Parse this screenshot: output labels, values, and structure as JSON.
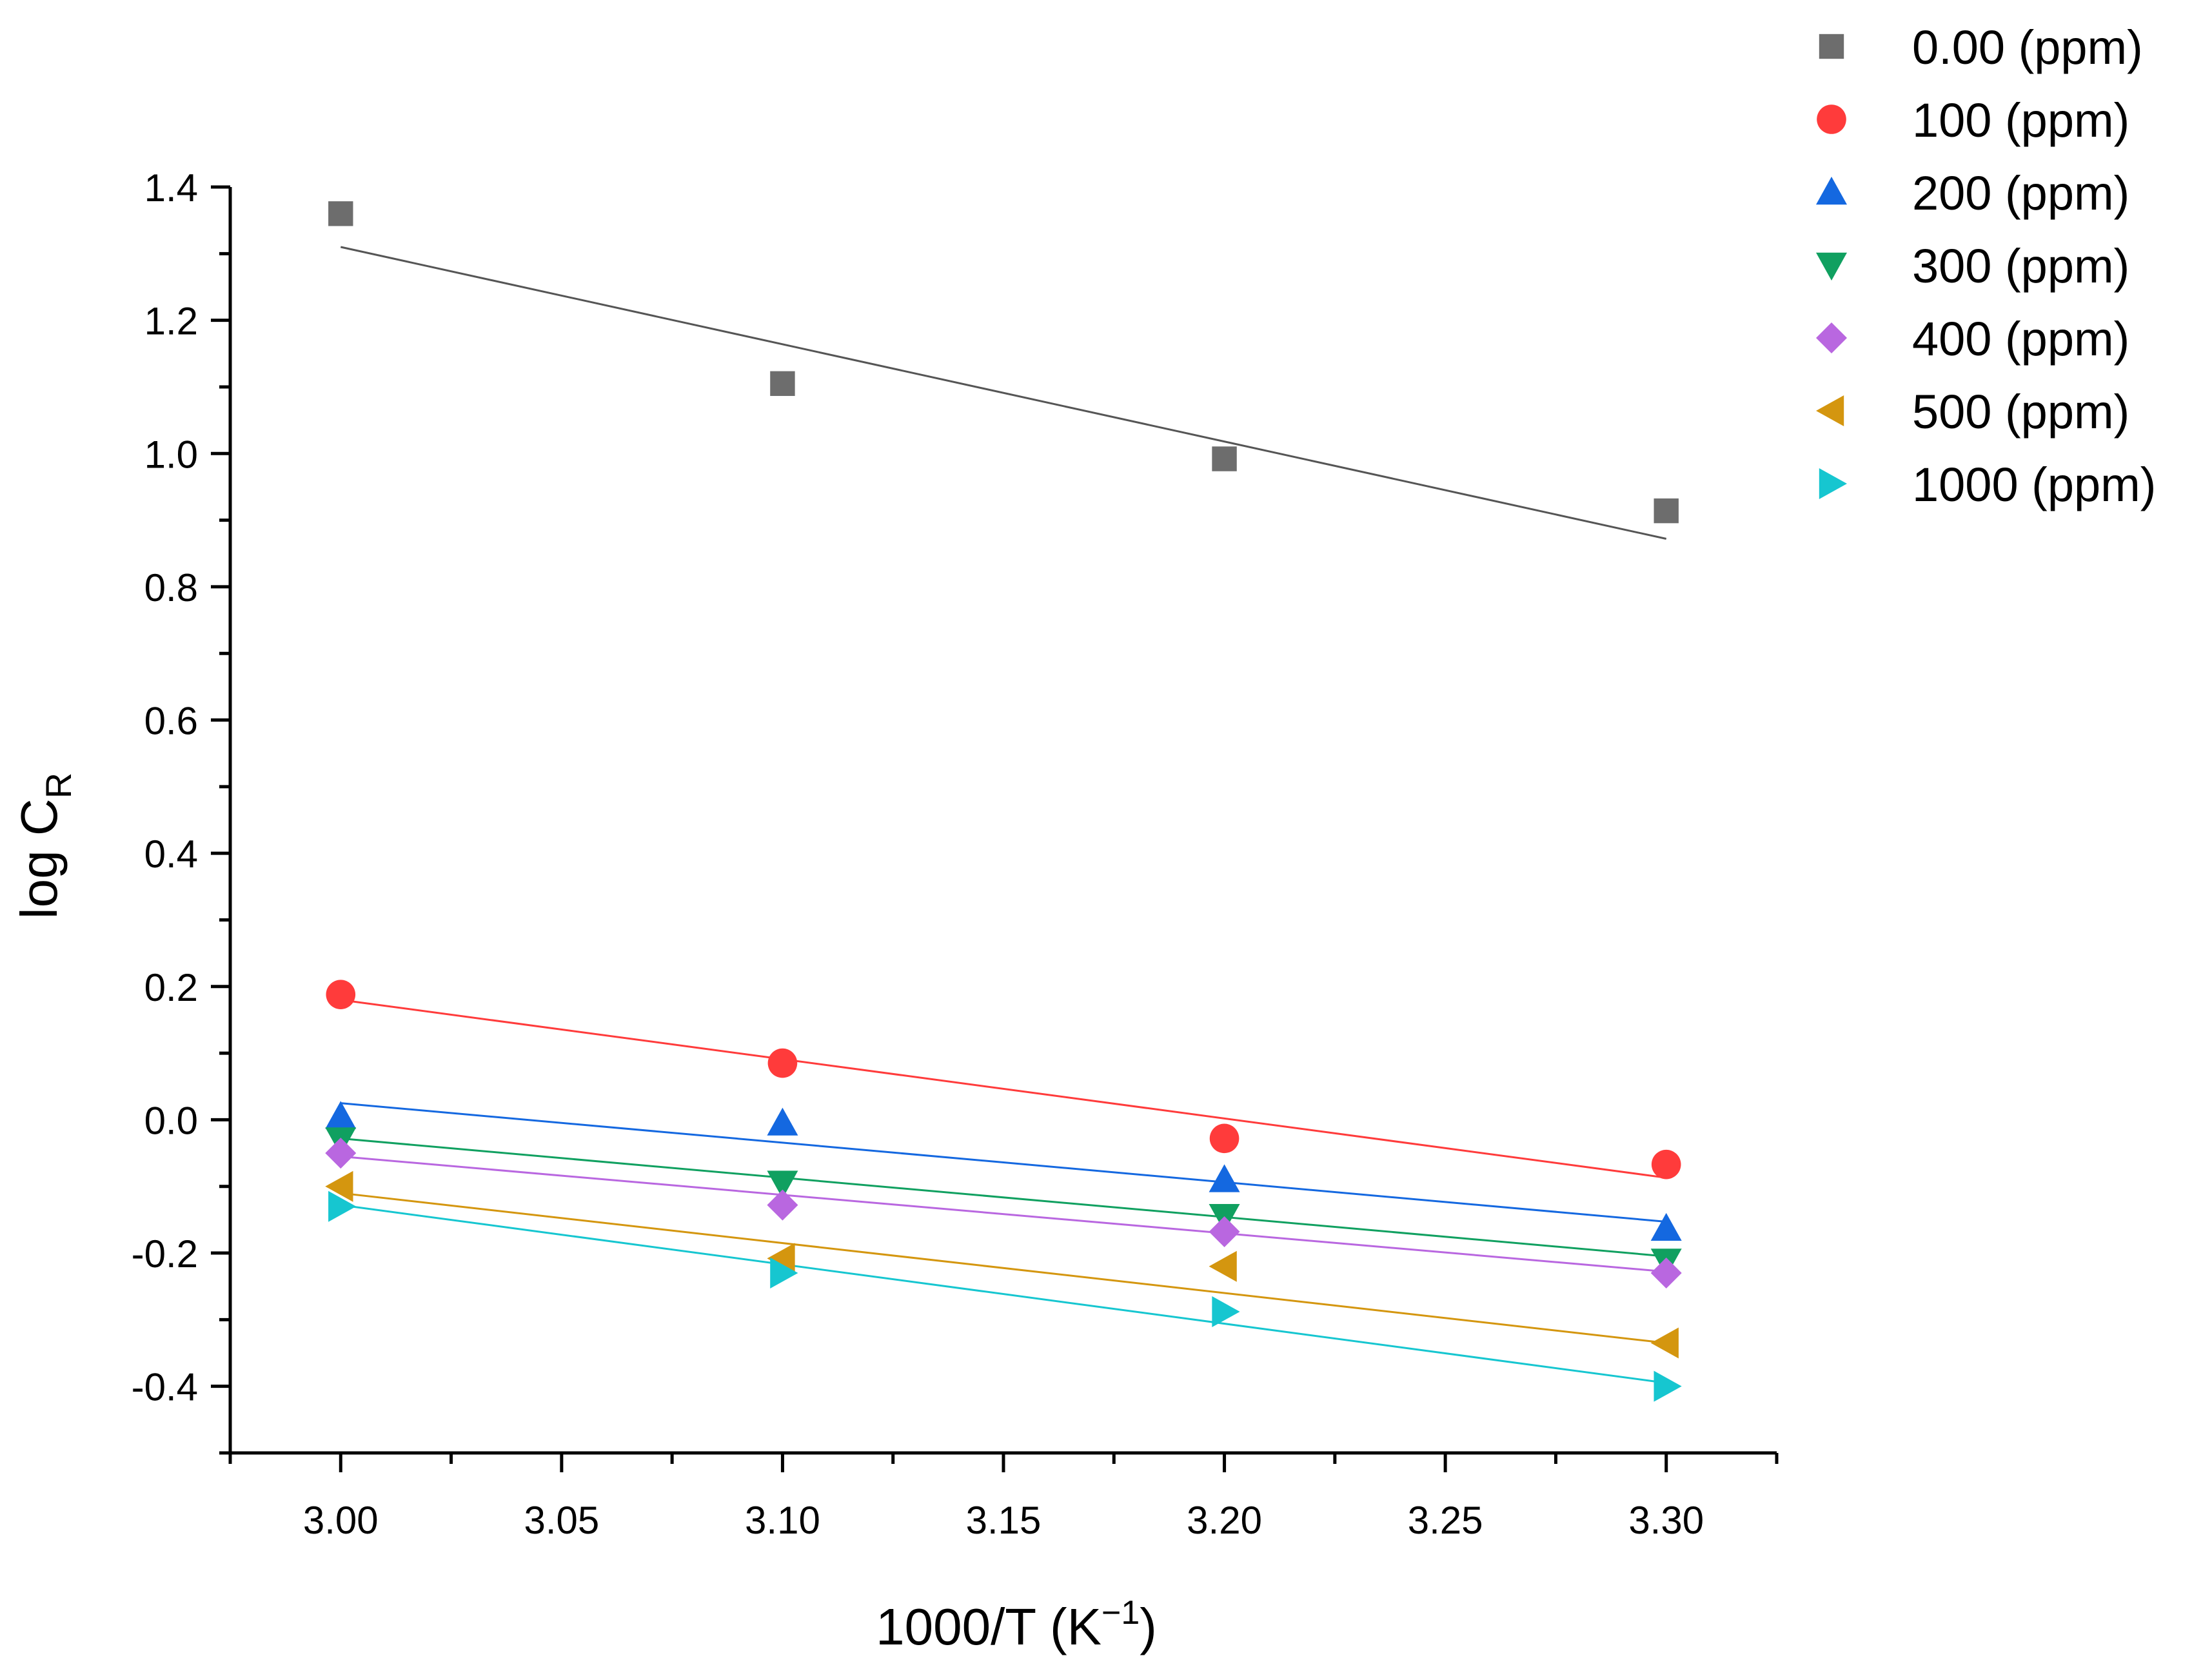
{
  "chart_data": {
    "type": "scatter",
    "title": "",
    "xlabel": "1000/T (K",
    "xlabel_sup": "−1",
    "xlabel_end": ")",
    "ylabel": "log C",
    "ylabel_sub": "R",
    "xlim": [
      2.975,
      3.325
    ],
    "ylim": [
      -0.5,
      1.4
    ],
    "x_ticks": [
      3.0,
      3.05,
      3.1,
      3.15,
      3.2,
      3.25,
      3.3
    ],
    "x_tick_labels": [
      "3.00",
      "3.05",
      "3.10",
      "3.15",
      "3.20",
      "3.25",
      "3.30"
    ],
    "y_ticks": [
      -0.4,
      -0.2,
      0.0,
      0.2,
      0.4,
      0.6,
      0.8,
      1.0,
      1.2,
      1.4
    ],
    "y_tick_labels": [
      "-0.4",
      "-0.2",
      "0.0",
      "0.2",
      "0.4",
      "0.6",
      "0.8",
      "1.0",
      "1.2",
      "1.4"
    ],
    "grid": false,
    "legend_position": "top-right outside",
    "x": [
      3.0,
      3.1,
      3.2,
      3.3
    ],
    "series": [
      {
        "name": "0.00 (ppm)",
        "marker": "square",
        "color": "#6d6d6d",
        "line_color": "#555555",
        "values": [
          1.36,
          1.105,
          0.992,
          0.914
        ],
        "fit": [
          1.31,
          0.872
        ]
      },
      {
        "name": "100 (ppm)",
        "marker": "circle",
        "color": "#ff3b3b",
        "line_color": "#ff3b3b",
        "values": [
          0.188,
          0.085,
          -0.028,
          -0.067
        ],
        "fit": [
          0.18,
          -0.087
        ]
      },
      {
        "name": "200 (ppm)",
        "marker": "triangle-up",
        "color": "#1468e0",
        "line_color": "#1468e0",
        "values": [
          0.005,
          -0.005,
          -0.09,
          -0.163
        ],
        "fit": [
          0.025,
          -0.153
        ]
      },
      {
        "name": "300 (ppm)",
        "marker": "triangle-down",
        "color": "#10a060",
        "line_color": "#10a060",
        "values": [
          -0.03,
          -0.095,
          -0.145,
          -0.212
        ],
        "fit": [
          -0.028,
          -0.205
        ]
      },
      {
        "name": "400 (ppm)",
        "marker": "diamond",
        "color": "#b967e0",
        "line_color": "#b967e0",
        "values": [
          -0.05,
          -0.128,
          -0.168,
          -0.23
        ],
        "fit": [
          -0.055,
          -0.228
        ]
      },
      {
        "name": "500 (ppm)",
        "marker": "triangle-left",
        "color": "#d4960f",
        "line_color": "#d4960f",
        "values": [
          -0.1,
          -0.208,
          -0.22,
          -0.335
        ],
        "fit": [
          -0.11,
          -0.335
        ]
      },
      {
        "name": "1000 (ppm)",
        "marker": "triangle-right",
        "color": "#16c6d0",
        "line_color": "#16c6d0",
        "values": [
          -0.13,
          -0.23,
          -0.288,
          -0.4
        ],
        "fit": [
          -0.128,
          -0.395
        ]
      }
    ]
  }
}
